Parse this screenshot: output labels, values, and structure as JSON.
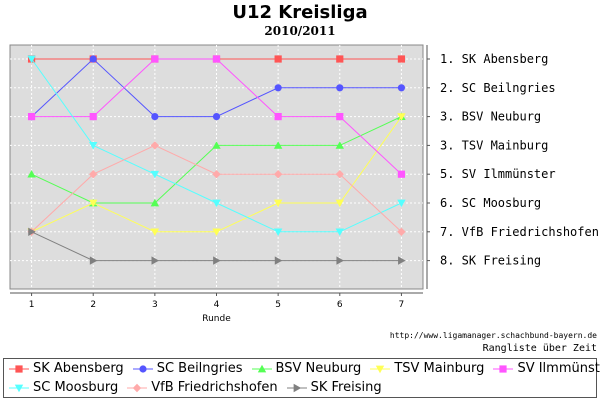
{
  "header": {
    "title": "U12 Kreisliga",
    "subtitle": "2010/2011"
  },
  "footer": {
    "credit": "http://www.ligamanager.schachbund-bayern.de",
    "subcredit": "Rangliste über Zeit"
  },
  "chart_data": {
    "type": "line",
    "xlabel": "Runde",
    "ylabel": "",
    "x": [
      1,
      2,
      3,
      4,
      5,
      6,
      7
    ],
    "ylim": [
      1,
      8
    ],
    "y_inverted": true,
    "grid": true,
    "background": "#dddddd",
    "right_axis_labels": [
      "1. SK Abensberg",
      "2. SC Beilngries",
      "3. BSV Neuburg",
      "3. TSV Mainburg",
      "5. SV Ilmmünster",
      "6. SC Moosburg",
      "7. VfB Friedrichshofen",
      "8. SK Freising"
    ],
    "legend_position": "bottom",
    "series": [
      {
        "name": "SK Abensberg",
        "color": "#ff5555",
        "marker": "square",
        "values": [
          1,
          1,
          1,
          1,
          1,
          1,
          1
        ]
      },
      {
        "name": "SC Beilngries",
        "color": "#5555ff",
        "marker": "circle",
        "values": [
          3,
          1,
          3,
          3,
          2,
          2,
          2
        ]
      },
      {
        "name": "BSV Neuburg",
        "color": "#55ff55",
        "marker": "triangle-up",
        "values": [
          5,
          6,
          6,
          4,
          4,
          4,
          3
        ]
      },
      {
        "name": "TSV Mainburg",
        "color": "#ffff55",
        "marker": "triangle-down",
        "values": [
          7,
          6,
          7,
          7,
          6,
          6,
          3
        ]
      },
      {
        "name": "SV Ilmmünster",
        "color": "#ff55ff",
        "marker": "square",
        "values": [
          3,
          3,
          1,
          1,
          3,
          3,
          5
        ]
      },
      {
        "name": "SC Moosburg",
        "color": "#55ffff",
        "marker": "triangle-down",
        "values": [
          1,
          4,
          5,
          6,
          7,
          7,
          6
        ]
      },
      {
        "name": "VfB Friedrichshofen",
        "color": "#ffaaaa",
        "marker": "diamond",
        "values": [
          7,
          5,
          4,
          5,
          5,
          5,
          7
        ]
      },
      {
        "name": "SK Freising",
        "color": "#808080",
        "marker": "triangle-right",
        "values": [
          7,
          8,
          8,
          8,
          8,
          8,
          8
        ]
      }
    ]
  }
}
